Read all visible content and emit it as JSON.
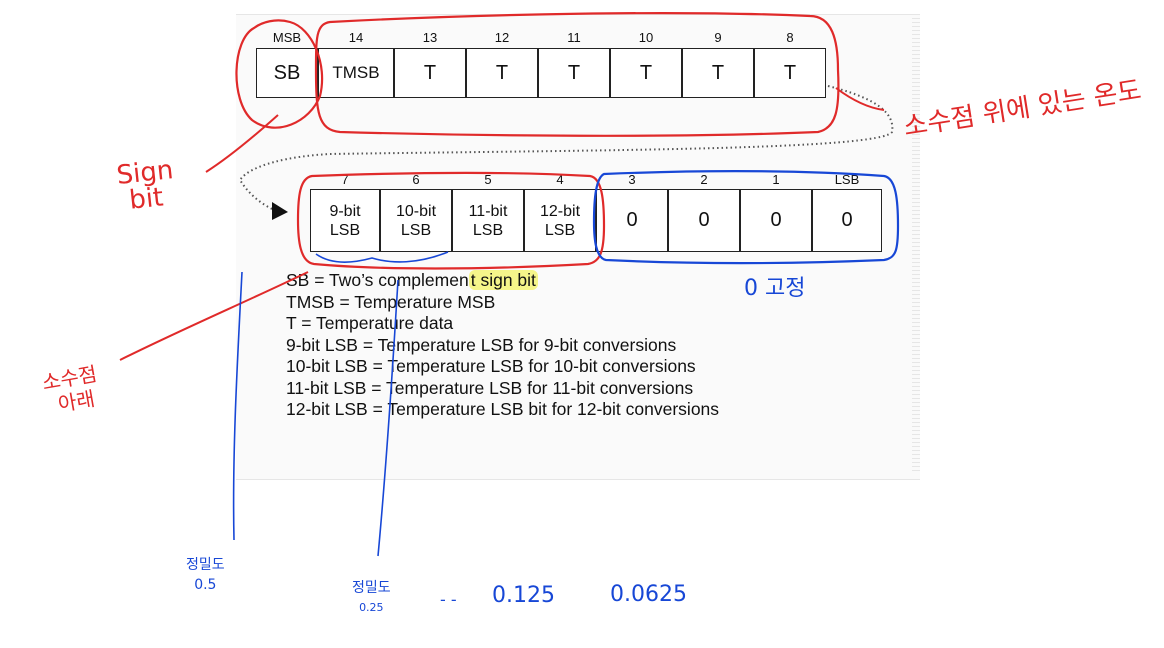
{
  "register_high": {
    "bit_labels": [
      "MSB",
      "14",
      "13",
      "12",
      "11",
      "10",
      "9",
      "8"
    ],
    "cells": [
      "SB",
      "TMSB",
      "T",
      "T",
      "T",
      "T",
      "T",
      "T"
    ]
  },
  "register_low": {
    "bit_labels": [
      "7",
      "6",
      "5",
      "4",
      "3",
      "2",
      "1",
      "LSB"
    ],
    "cells": [
      {
        "line1": "9-bit",
        "line2": "LSB"
      },
      {
        "line1": "10-bit",
        "line2": "LSB"
      },
      {
        "line1": "11-bit",
        "line2": "LSB"
      },
      {
        "line1": "12-bit",
        "line2": "LSB"
      },
      {
        "line1": "0",
        "line2": ""
      },
      {
        "line1": "0",
        "line2": ""
      },
      {
        "line1": "0",
        "line2": ""
      },
      {
        "line1": "0",
        "line2": ""
      }
    ]
  },
  "legend": {
    "sb_prefix": "SB = Two’s complemen",
    "sb_highlight": "t sign bit",
    "lines": [
      "TMSB = Temperature MSB",
      "T = Temperature data",
      "9-bit LSB = Temperature LSB for 9-bit conversions",
      "10-bit LSB = Temperature LSB for 10-bit conversions",
      "11-bit LSB = Temperature LSB for 11-bit conversions",
      "12-bit LSB = Temperature LSB bit for 12-bit conversions"
    ]
  },
  "annotations": {
    "sign_bit_line1": "Sign",
    "sign_bit_line2": "bit",
    "above_decimal": "소수점 위에 있는 온도",
    "below_decimal_line1": "소수점",
    "below_decimal_line2": "아래",
    "zero_fixed": "0 고정",
    "precision_05_label": "정밀도",
    "precision_05_value": "0.5",
    "precision_025_label": "정밀도",
    "precision_025_value": "0.25",
    "ellipsis": "- -",
    "precision_0125": "0.125",
    "precision_00625": "0.0625"
  },
  "colors": {
    "red_pen": "#e02a2a",
    "blue_pen": "#1747d6",
    "highlight": "#f5f58a",
    "text": "#111111"
  }
}
